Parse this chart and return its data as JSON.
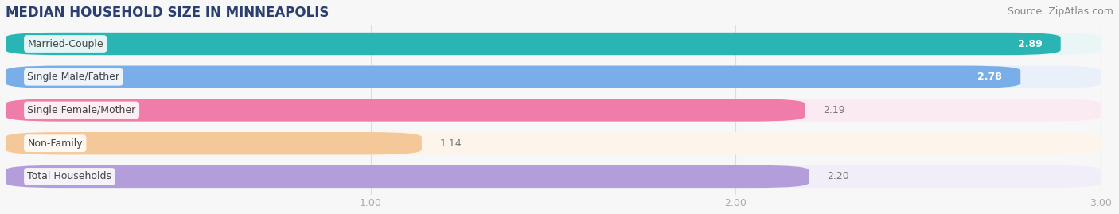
{
  "title": "MEDIAN HOUSEHOLD SIZE IN MINNEAPOLIS",
  "source": "Source: ZipAtlas.com",
  "categories": [
    "Married-Couple",
    "Single Male/Father",
    "Single Female/Mother",
    "Non-Family",
    "Total Households"
  ],
  "values": [
    2.89,
    2.78,
    2.19,
    1.14,
    2.2
  ],
  "bar_colors": [
    "#2ab5b5",
    "#7aaee8",
    "#f07caa",
    "#f5c899",
    "#b39ddb"
  ],
  "bar_bg_colors": [
    "#eaf6f6",
    "#eaf0fa",
    "#fceaf3",
    "#fdf5ec",
    "#f2eef9"
  ],
  "value_inside_colors": [
    "white",
    "white",
    "#777777",
    "#777777",
    "white"
  ],
  "xlim_start": 0.0,
  "xlim_end": 3.0,
  "xticks": [
    1.0,
    2.0,
    3.0
  ],
  "title_fontsize": 12,
  "source_fontsize": 9,
  "label_fontsize": 9,
  "value_fontsize": 9,
  "background_color": "#f7f7f7",
  "grid_color": "#dddddd",
  "title_color": "#2a3f6f",
  "source_color": "#888888",
  "tick_color": "#aaaaaa",
  "value_inside_threshold": 2.5,
  "bar_height": 0.68
}
